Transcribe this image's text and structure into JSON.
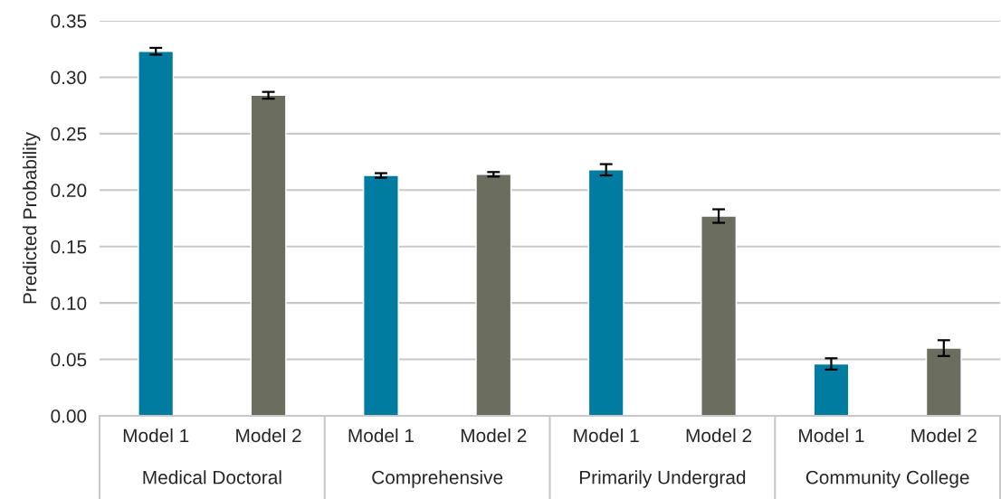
{
  "chart_data": {
    "type": "bar",
    "ylabel": "Predicted Probability",
    "categories": [
      "Model 1",
      "Model 2",
      "Model 1",
      "Model 2",
      "Model 1",
      "Model 2",
      "Model 1",
      "Model 2"
    ],
    "values": [
      0.323,
      0.284,
      0.213,
      0.214,
      0.218,
      0.177,
      0.046,
      0.06
    ],
    "errors": [
      0.003,
      0.003,
      0.002,
      0.002,
      0.005,
      0.006,
      0.005,
      0.007
    ],
    "colors": [
      "#007ca0",
      "#6b6e5e",
      "#007ca0",
      "#6b6e5e",
      "#007ca0",
      "#6b6e5e",
      "#007ca0",
      "#6b6e5e"
    ],
    "annotations": [
      "Medical Doctoral",
      "Comprehensive",
      "Primarily Undergrad",
      "Community College"
    ],
    "ylim": [
      0,
      0.35
    ],
    "yticks": [
      {
        "value": 0,
        "label": "0.00"
      },
      {
        "value": 0.05,
        "label": "0.05"
      },
      {
        "value": 0.1,
        "label": "0.10"
      },
      {
        "value": 0.15,
        "label": "0.15"
      },
      {
        "value": 0.2,
        "label": "0.20"
      },
      {
        "value": 0.25,
        "label": "0.25"
      },
      {
        "value": 0.3,
        "label": "0.30"
      },
      {
        "value": 0.35,
        "label": "0.35"
      }
    ],
    "grid": "y"
  }
}
